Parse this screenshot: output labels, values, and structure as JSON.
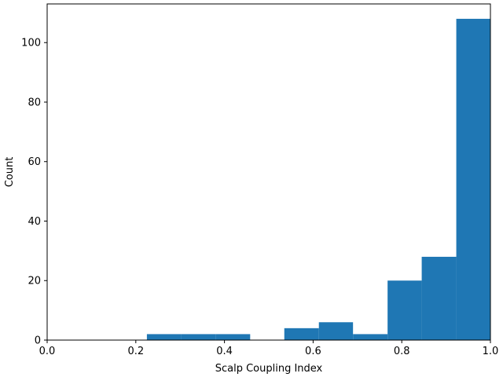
{
  "chart_data": {
    "type": "bar",
    "title": "",
    "xlabel": "Scalp Coupling Index",
    "ylabel": "Count",
    "xlim": [
      0.0,
      1.0
    ],
    "ylim": [
      0,
      113
    ],
    "x_ticks": [
      "0.0",
      "0.2",
      "0.4",
      "0.6",
      "0.8",
      "1.0"
    ],
    "y_ticks": [
      "0",
      "20",
      "40",
      "60",
      "80",
      "100"
    ],
    "grid": false,
    "bar_color": "#1f77b4",
    "bins": [
      {
        "x0": 0.225,
        "x1": 0.303,
        "value": 2
      },
      {
        "x0": 0.303,
        "x1": 0.38,
        "value": 2
      },
      {
        "x0": 0.38,
        "x1": 0.458,
        "value": 2
      },
      {
        "x0": 0.458,
        "x1": 0.535,
        "value": 0
      },
      {
        "x0": 0.535,
        "x1": 0.613,
        "value": 4
      },
      {
        "x0": 0.613,
        "x1": 0.69,
        "value": 6
      },
      {
        "x0": 0.69,
        "x1": 0.768,
        "value": 2
      },
      {
        "x0": 0.768,
        "x1": 0.845,
        "value": 20
      },
      {
        "x0": 0.845,
        "x1": 0.923,
        "value": 28
      },
      {
        "x0": 0.923,
        "x1": 1.0,
        "value": 108
      }
    ]
  }
}
